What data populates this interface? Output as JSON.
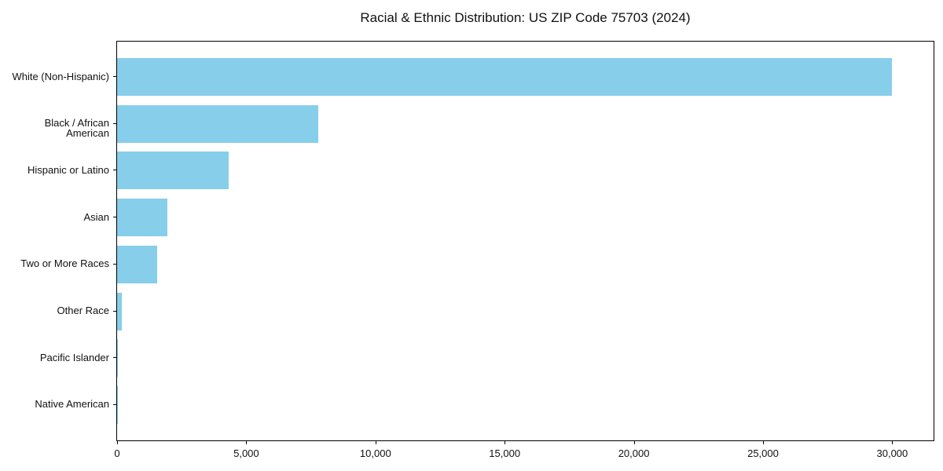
{
  "chart_data": {
    "type": "bar",
    "orientation": "horizontal",
    "title": "Racial & Ethnic Distribution: US ZIP Code 75703 (2024)",
    "categories": [
      "White (Non-Hispanic)",
      "Black / African American",
      "Hispanic or Latino",
      "Asian",
      "Two or More Races",
      "Other Race",
      "Pacific Islander",
      "Native American"
    ],
    "values": [
      30000,
      7800,
      4320,
      1950,
      1550,
      175,
      25,
      10
    ],
    "xlabel": "",
    "ylabel": "",
    "xlim": [
      0,
      31600
    ],
    "x_ticks": [
      0,
      5000,
      10000,
      15000,
      20000,
      25000,
      30000
    ],
    "x_tick_labels": [
      "0",
      "5,000",
      "10,000",
      "15,000",
      "20,000",
      "25,000",
      "30,000"
    ],
    "bar_color": "#87CEEB",
    "grid": false,
    "plot_border_color": "#000000",
    "background_color": "#ffffff"
  }
}
